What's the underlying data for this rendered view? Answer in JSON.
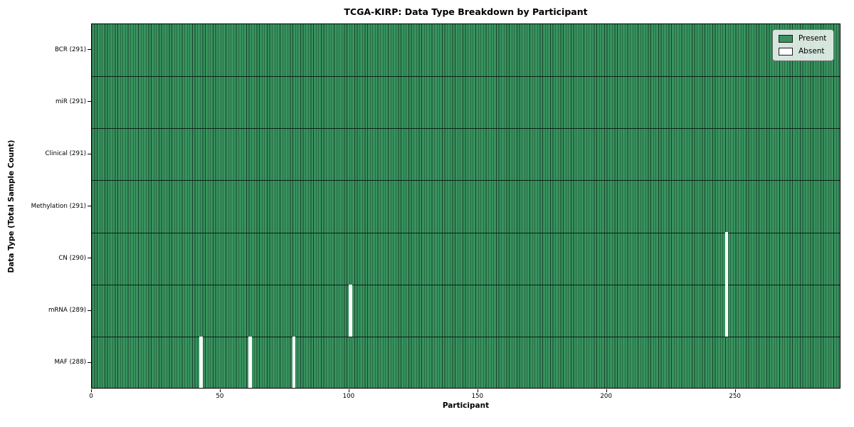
{
  "chart_data": {
    "type": "heatmap",
    "title": "TCGA-KIRP: Data Type Breakdown by Participant",
    "xlabel": "Participant",
    "ylabel": "Data Type (Total Sample Count)",
    "n_participants": 291,
    "x_ticks": [
      0,
      50,
      100,
      150,
      200,
      250
    ],
    "x_range": [
      0,
      291
    ],
    "grid": false,
    "rows": [
      {
        "label": "BCR (291)",
        "data_type": "BCR",
        "present_count": 291,
        "absent_participants": []
      },
      {
        "label": "miR (291)",
        "data_type": "miR",
        "present_count": 291,
        "absent_participants": []
      },
      {
        "label": "Clinical (291)",
        "data_type": "Clinical",
        "present_count": 291,
        "absent_participants": []
      },
      {
        "label": "Methylation (291)",
        "data_type": "Methylation",
        "present_count": 291,
        "absent_participants": []
      },
      {
        "label": "CN (290)",
        "data_type": "CN",
        "present_count": 290,
        "absent_participants": [
          246
        ]
      },
      {
        "label": "mRNA (289)",
        "data_type": "mRNA",
        "present_count": 289,
        "absent_participants": [
          100,
          246
        ]
      },
      {
        "label": "MAF (288)",
        "data_type": "MAF",
        "present_count": 288,
        "absent_participants": [
          42,
          61,
          78
        ]
      }
    ],
    "legend": {
      "position": "upper right",
      "items": [
        {
          "label": "Present",
          "color": "#38935f"
        },
        {
          "label": "Absent",
          "color": "#ffffff"
        }
      ]
    },
    "colors": {
      "present_fill": "#38935f",
      "cell_edge": "#17402a",
      "row_separator": "#0c2016",
      "absent": "#ffffff",
      "axes_border": "#000000",
      "background": "#ffffff"
    }
  }
}
